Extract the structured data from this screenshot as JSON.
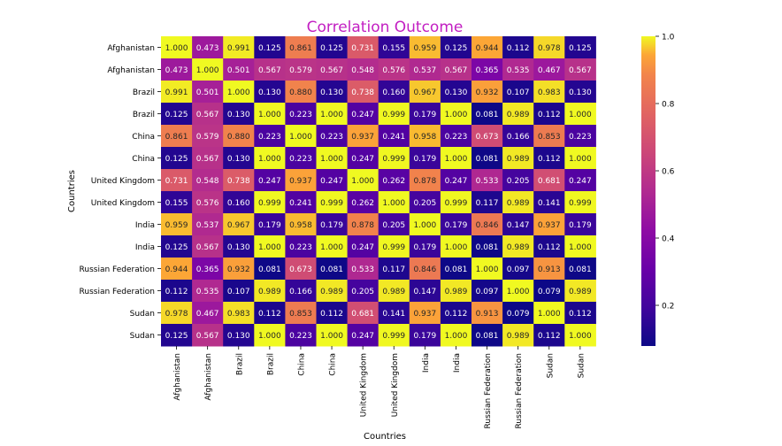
{
  "chart_data": {
    "type": "heatmap",
    "title": "Correlation Outcome",
    "xlabel": "Countries",
    "ylabel": "Countries",
    "categories": [
      "Afghanistan",
      "Afghanistan",
      "Brazil",
      "Brazil",
      "China",
      "China",
      "United Kingdom",
      "United Kingdom",
      "India",
      "India",
      "Russian Federation",
      "Russian Federation",
      "Sudan",
      "Sudan"
    ],
    "colormap": "plasma",
    "colorbar": {
      "range": [
        0.079,
        1.0
      ],
      "ticks": [
        "0.2",
        "0.4",
        "0.6",
        "0.8",
        "1.0"
      ]
    },
    "values": [
      [
        "1.000",
        "0.473",
        "0.991",
        "0.125",
        "0.861",
        "0.125",
        "0.731",
        "0.155",
        "0.959",
        "0.125",
        "0.944",
        "0.112",
        "0.978",
        "0.125"
      ],
      [
        "0.473",
        "1.000",
        "0.501",
        "0.567",
        "0.579",
        "0.567",
        "0.548",
        "0.576",
        "0.537",
        "0.567",
        "0.365",
        "0.535",
        "0.467",
        "0.567"
      ],
      [
        "0.991",
        "0.501",
        "1.000",
        "0.130",
        "0.880",
        "0.130",
        "0.738",
        "0.160",
        "0.967",
        "0.130",
        "0.932",
        "0.107",
        "0.983",
        "0.130"
      ],
      [
        "0.125",
        "0.567",
        "0.130",
        "1.000",
        "0.223",
        "1.000",
        "0.247",
        "0.999",
        "0.179",
        "1.000",
        "0.081",
        "0.989",
        "0.112",
        "1.000"
      ],
      [
        "0.861",
        "0.579",
        "0.880",
        "0.223",
        "1.000",
        "0.223",
        "0.937",
        "0.241",
        "0.958",
        "0.223",
        "0.673",
        "0.166",
        "0.853",
        "0.223"
      ],
      [
        "0.125",
        "0.567",
        "0.130",
        "1.000",
        "0.223",
        "1.000",
        "0.247",
        "0.999",
        "0.179",
        "1.000",
        "0.081",
        "0.989",
        "0.112",
        "1.000"
      ],
      [
        "0.731",
        "0.548",
        "0.738",
        "0.247",
        "0.937",
        "0.247",
        "1.000",
        "0.262",
        "0.878",
        "0.247",
        "0.533",
        "0.205",
        "0.681",
        "0.247"
      ],
      [
        "0.155",
        "0.576",
        "0.160",
        "0.999",
        "0.241",
        "0.999",
        "0.262",
        "1.000",
        "0.205",
        "0.999",
        "0.117",
        "0.989",
        "0.141",
        "0.999"
      ],
      [
        "0.959",
        "0.537",
        "0.967",
        "0.179",
        "0.958",
        "0.179",
        "0.878",
        "0.205",
        "1.000",
        "0.179",
        "0.846",
        "0.147",
        "0.937",
        "0.179"
      ],
      [
        "0.125",
        "0.567",
        "0.130",
        "1.000",
        "0.223",
        "1.000",
        "0.247",
        "0.999",
        "0.179",
        "1.000",
        "0.081",
        "0.989",
        "0.112",
        "1.000"
      ],
      [
        "0.944",
        "0.365",
        "0.932",
        "0.081",
        "0.673",
        "0.081",
        "0.533",
        "0.117",
        "0.846",
        "0.081",
        "1.000",
        "0.097",
        "0.913",
        "0.081"
      ],
      [
        "0.112",
        "0.535",
        "0.107",
        "0.989",
        "0.166",
        "0.989",
        "0.205",
        "0.989",
        "0.147",
        "0.989",
        "0.097",
        "1.000",
        "0.079",
        "0.989"
      ],
      [
        "0.978",
        "0.467",
        "0.983",
        "0.112",
        "0.853",
        "0.112",
        "0.681",
        "0.141",
        "0.937",
        "0.112",
        "0.913",
        "0.079",
        "1.000",
        "0.112"
      ],
      [
        "0.125",
        "0.567",
        "0.130",
        "1.000",
        "0.223",
        "1.000",
        "0.247",
        "0.999",
        "0.179",
        "1.000",
        "0.081",
        "0.989",
        "0.112",
        "1.000"
      ]
    ],
    "title_color": "#c21ec2"
  }
}
